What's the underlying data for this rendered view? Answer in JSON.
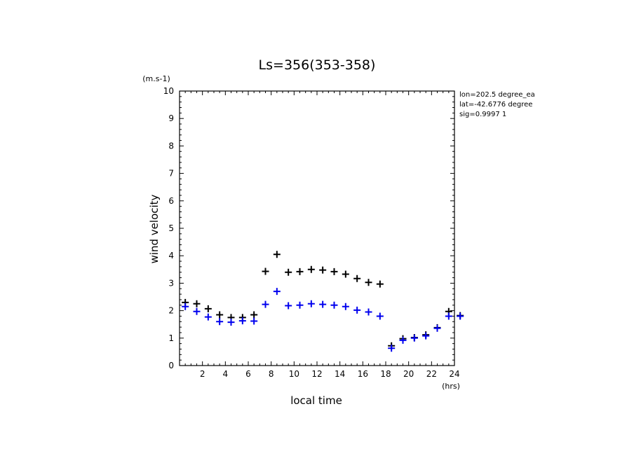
{
  "chart_data": {
    "type": "scatter",
    "title": "Ls=356(353-358)",
    "xlabel": "local time",
    "ylabel": "wind velocity",
    "x_unit": "(hrs)",
    "y_unit": "(m.s-1)",
    "xlim": [
      0,
      24
    ],
    "ylim": [
      0,
      10
    ],
    "x_ticks": [
      "2",
      "4",
      "6",
      "8",
      "10",
      "12",
      "14",
      "16",
      "18",
      "20",
      "22",
      "24"
    ],
    "y_ticks": [
      "0",
      "1",
      "2",
      "3",
      "4",
      "5",
      "6",
      "7",
      "8",
      "9",
      "10"
    ],
    "info_lines": [
      "lon=202.5 degree_ea",
      "lat=-42.6776 degree",
      "sig=0.9997 1"
    ],
    "series": [
      {
        "color": "#000000",
        "x": [
          0.5,
          1.5,
          2.5,
          3.5,
          4.5,
          5.5,
          6.5,
          7.5,
          8.5,
          9.5,
          10.5,
          11.5,
          12.5,
          13.5,
          14.5,
          15.5,
          16.5,
          17.5,
          18.5,
          19.5,
          20.5,
          21.5,
          22.5,
          23.5,
          24.5
        ],
        "y": [
          2.3,
          2.25,
          2.07,
          1.85,
          1.75,
          1.75,
          1.85,
          3.43,
          4.05,
          3.4,
          3.42,
          3.5,
          3.48,
          3.42,
          3.33,
          3.17,
          3.03,
          2.97,
          0.72,
          0.98,
          1.02,
          1.12,
          1.38,
          1.97,
          1.82
        ]
      },
      {
        "color": "#0000ee",
        "x": [
          0.5,
          1.5,
          2.5,
          3.5,
          4.5,
          5.5,
          6.5,
          7.5,
          8.5,
          9.5,
          10.5,
          11.5,
          12.5,
          13.5,
          14.5,
          15.5,
          16.5,
          17.5,
          18.5,
          19.5,
          20.5,
          21.5,
          22.5,
          23.5,
          24.5
        ],
        "y": [
          2.15,
          1.97,
          1.77,
          1.6,
          1.58,
          1.63,
          1.62,
          2.23,
          2.7,
          2.18,
          2.2,
          2.25,
          2.23,
          2.2,
          2.15,
          2.02,
          1.95,
          1.8,
          0.63,
          0.92,
          1.0,
          1.08,
          1.36,
          1.8,
          1.8
        ]
      }
    ]
  }
}
